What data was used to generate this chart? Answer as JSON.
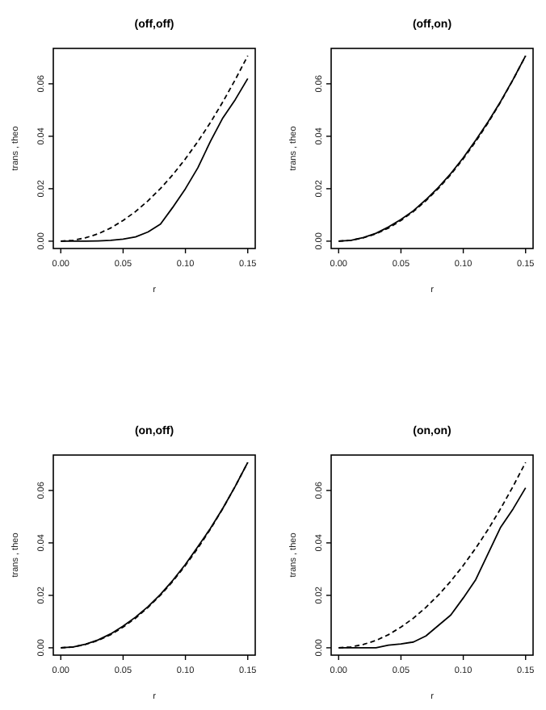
{
  "chart_data": [
    {
      "type": "line",
      "title": "(off,off)",
      "xlabel": "r",
      "ylabel": "trans , theo",
      "x": [
        0,
        0.01,
        0.02,
        0.03,
        0.04,
        0.05,
        0.06,
        0.07,
        0.08,
        0.09,
        0.1,
        0.11,
        0.12,
        0.13,
        0.14,
        0.15
      ],
      "xlim": [
        -0.006,
        0.156
      ],
      "ylim": [
        -0.0028,
        0.0735
      ],
      "xticks": [
        {
          "value": 0,
          "label": "0.00"
        },
        {
          "value": 0.05,
          "label": "0.05"
        },
        {
          "value": 0.1,
          "label": "0.10"
        },
        {
          "value": 0.15,
          "label": "0.15"
        }
      ],
      "yticks": [
        {
          "value": 0,
          "label": "0.00"
        },
        {
          "value": 0.02,
          "label": "0.02"
        },
        {
          "value": 0.04,
          "label": "0.04"
        },
        {
          "value": 0.06,
          "label": "0.06"
        }
      ],
      "grid": false,
      "series": [
        {
          "color": "#000000",
          "line_style": "solid",
          "values": [
            0,
            0,
            0,
            0.0001,
            0.0003,
            0.0008,
            0.0016,
            0.0035,
            0.0065,
            0.013,
            0.02,
            0.028,
            0.038,
            0.047,
            0.054,
            0.062
          ]
        },
        {
          "color": "#000000",
          "line_style": "dashed",
          "values": [
            0,
            0.0003,
            0.0013,
            0.0028,
            0.005,
            0.0079,
            0.0113,
            0.0154,
            0.0201,
            0.0254,
            0.0314,
            0.038,
            0.0452,
            0.0531,
            0.0616,
            0.0707
          ]
        }
      ]
    },
    {
      "type": "line",
      "title": "(off,on)",
      "xlabel": "r",
      "ylabel": "trans , theo",
      "x": [
        0,
        0.01,
        0.02,
        0.03,
        0.04,
        0.05,
        0.06,
        0.07,
        0.08,
        0.09,
        0.1,
        0.11,
        0.12,
        0.13,
        0.14,
        0.15
      ],
      "xlim": [
        -0.006,
        0.156
      ],
      "ylim": [
        -0.0028,
        0.0735
      ],
      "xticks": [
        {
          "value": 0,
          "label": "0.00"
        },
        {
          "value": 0.05,
          "label": "0.05"
        },
        {
          "value": 0.1,
          "label": "0.10"
        },
        {
          "value": 0.15,
          "label": "0.15"
        }
      ],
      "yticks": [
        {
          "value": 0,
          "label": "0.00"
        },
        {
          "value": 0.02,
          "label": "0.02"
        },
        {
          "value": 0.04,
          "label": "0.04"
        },
        {
          "value": 0.06,
          "label": "0.06"
        }
      ],
      "grid": false,
      "series": [
        {
          "color": "#000000",
          "line_style": "solid",
          "values": [
            0,
            0.0003,
            0.0014,
            0.003,
            0.0054,
            0.0083,
            0.0116,
            0.0158,
            0.0205,
            0.0258,
            0.0318,
            0.0385,
            0.0456,
            0.0533,
            0.0617,
            0.0707
          ]
        },
        {
          "color": "#000000",
          "line_style": "dashed",
          "values": [
            0,
            0.0003,
            0.0013,
            0.0028,
            0.005,
            0.0079,
            0.0113,
            0.0154,
            0.0201,
            0.0254,
            0.0314,
            0.038,
            0.0452,
            0.0531,
            0.0616,
            0.0707
          ]
        }
      ]
    },
    {
      "type": "line",
      "title": "(on,off)",
      "xlabel": "r",
      "ylabel": "trans , theo",
      "x": [
        0,
        0.01,
        0.02,
        0.03,
        0.04,
        0.05,
        0.06,
        0.07,
        0.08,
        0.09,
        0.1,
        0.11,
        0.12,
        0.13,
        0.14,
        0.15
      ],
      "xlim": [
        -0.006,
        0.156
      ],
      "ylim": [
        -0.0028,
        0.0735
      ],
      "xticks": [
        {
          "value": 0,
          "label": "0.00"
        },
        {
          "value": 0.05,
          "label": "0.05"
        },
        {
          "value": 0.1,
          "label": "0.10"
        },
        {
          "value": 0.15,
          "label": "0.15"
        }
      ],
      "yticks": [
        {
          "value": 0,
          "label": "0.00"
        },
        {
          "value": 0.02,
          "label": "0.02"
        },
        {
          "value": 0.04,
          "label": "0.04"
        },
        {
          "value": 0.06,
          "label": "0.06"
        }
      ],
      "grid": false,
      "series": [
        {
          "color": "#000000",
          "line_style": "solid",
          "values": [
            0,
            0.0003,
            0.0014,
            0.003,
            0.0053,
            0.0083,
            0.0117,
            0.0157,
            0.0204,
            0.0258,
            0.0318,
            0.0386,
            0.0455,
            0.0532,
            0.0616,
            0.0707
          ]
        },
        {
          "color": "#000000",
          "line_style": "dashed",
          "values": [
            0,
            0.0003,
            0.0013,
            0.0028,
            0.005,
            0.0079,
            0.0113,
            0.0154,
            0.0201,
            0.0254,
            0.0314,
            0.038,
            0.0452,
            0.0531,
            0.0616,
            0.0707
          ]
        }
      ]
    },
    {
      "type": "line",
      "title": "(on,on)",
      "xlabel": "r",
      "ylabel": "trans , theo",
      "x": [
        0,
        0.01,
        0.02,
        0.03,
        0.04,
        0.05,
        0.06,
        0.07,
        0.08,
        0.09,
        0.1,
        0.11,
        0.12,
        0.13,
        0.14,
        0.15
      ],
      "xlim": [
        -0.006,
        0.156
      ],
      "ylim": [
        -0.0028,
        0.0735
      ],
      "xticks": [
        {
          "value": 0,
          "label": "0.00"
        },
        {
          "value": 0.05,
          "label": "0.05"
        },
        {
          "value": 0.1,
          "label": "0.10"
        },
        {
          "value": 0.15,
          "label": "0.15"
        }
      ],
      "yticks": [
        {
          "value": 0,
          "label": "0.00"
        },
        {
          "value": 0.02,
          "label": "0.02"
        },
        {
          "value": 0.04,
          "label": "0.04"
        },
        {
          "value": 0.06,
          "label": "0.06"
        }
      ],
      "grid": false,
      "series": [
        {
          "color": "#000000",
          "line_style": "solid",
          "values": [
            0,
            0,
            0,
            0,
            0.001,
            0.0015,
            0.0022,
            0.0045,
            0.0085,
            0.0125,
            0.019,
            0.026,
            0.036,
            0.046,
            0.053,
            0.061
          ]
        },
        {
          "color": "#000000",
          "line_style": "dashed",
          "values": [
            0,
            0.0003,
            0.0013,
            0.0028,
            0.005,
            0.0079,
            0.0113,
            0.0154,
            0.0201,
            0.0254,
            0.0314,
            0.038,
            0.0452,
            0.0531,
            0.0616,
            0.0707
          ]
        }
      ]
    }
  ]
}
